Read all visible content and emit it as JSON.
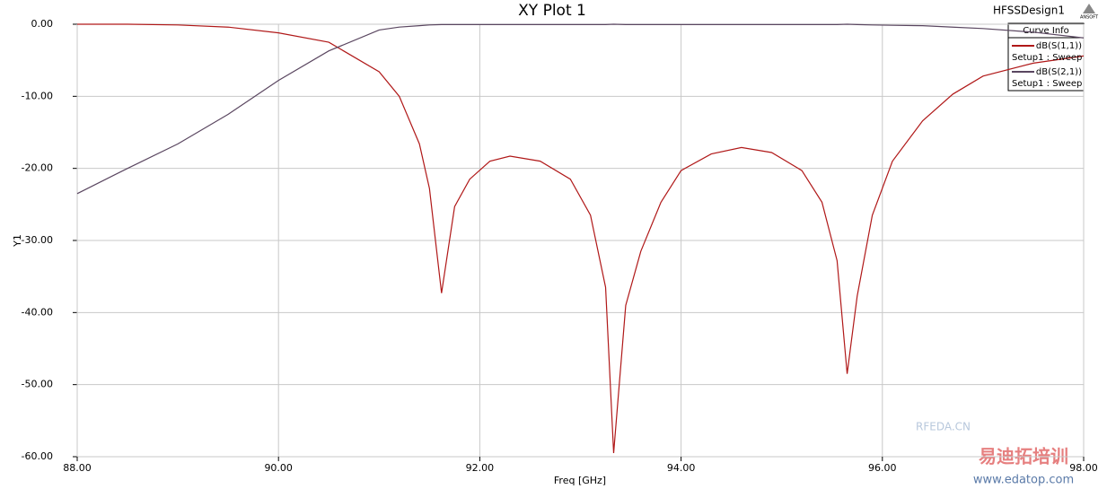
{
  "chart_data": {
    "type": "line",
    "title": "XY Plot 1",
    "design": "HFSSDesign1",
    "logo": "ANSOFT",
    "xlabel": "Freq [GHz]",
    "ylabel": "Y1",
    "legend_title": "Curve Info",
    "grid": true,
    "xlim": [
      88,
      98
    ],
    "ylim": [
      -60,
      0
    ],
    "xticks": [
      {
        "value": 88,
        "label": "88.00"
      },
      {
        "value": 90,
        "label": "90.00"
      },
      {
        "value": 92,
        "label": "92.00"
      },
      {
        "value": 94,
        "label": "94.00"
      },
      {
        "value": 96,
        "label": "96.00"
      },
      {
        "value": 98,
        "label": "98.00"
      }
    ],
    "yticks": [
      {
        "value": 0,
        "label": "0.00"
      },
      {
        "value": -10,
        "label": "-10.00"
      },
      {
        "value": -20,
        "label": "-20.00"
      },
      {
        "value": -30,
        "label": "-30.00"
      },
      {
        "value": -40,
        "label": "-40.00"
      },
      {
        "value": -50,
        "label": "-50.00"
      },
      {
        "value": -60,
        "label": "-60.00"
      }
    ],
    "x": [
      88,
      88.5,
      89,
      89.5,
      90,
      90.5,
      91,
      91.2,
      91.4,
      91.5,
      91.62,
      91.75,
      91.9,
      92.1,
      92.3,
      92.6,
      92.9,
      93.1,
      93.25,
      93.33,
      93.45,
      93.6,
      93.8,
      94,
      94.3,
      94.6,
      94.9,
      95.2,
      95.4,
      95.55,
      95.65,
      95.75,
      95.9,
      96.1,
      96.4,
      96.7,
      97,
      97.5,
      98
    ],
    "series": [
      {
        "name": "dB(S(1,1))",
        "sweep": "Setup1 : Sweep",
        "color": "#b01818",
        "values": [
          0,
          0,
          -0.1,
          -0.4,
          -1.2,
          -2.5,
          -6.6,
          -10,
          -16.6,
          -22.8,
          -37.3,
          -25.3,
          -21.5,
          -19,
          -18.3,
          -19,
          -21.5,
          -26.5,
          -36.5,
          -59.5,
          -39,
          -31.5,
          -24.7,
          -20.3,
          -18,
          -17.1,
          -17.8,
          -20.3,
          -24.7,
          -32.8,
          -48.5,
          -37.7,
          -26.5,
          -19,
          -13.4,
          -9.7,
          -7.2,
          -5.4,
          -4.4
        ]
      },
      {
        "name": "dB(S(2,1))",
        "sweep": "Setup1 : Sweep",
        "color": "#5a4660",
        "values": [
          -23.5,
          -20,
          -16.6,
          -12.5,
          -7.8,
          -3.7,
          -0.8,
          -0.4,
          -0.2,
          -0.1,
          -0.05,
          -0.05,
          -0.05,
          -0.05,
          -0.05,
          -0.05,
          -0.05,
          -0.05,
          -0.05,
          0,
          -0.05,
          -0.05,
          -0.05,
          -0.05,
          -0.05,
          -0.05,
          -0.05,
          -0.05,
          -0.05,
          -0.05,
          0,
          -0.05,
          -0.1,
          -0.15,
          -0.2,
          -0.4,
          -0.6,
          -1.1,
          -1.9
        ]
      }
    ],
    "watermarks": [
      "RFEDA.CN",
      "易迪拓培训",
      "www.edatop.com"
    ]
  }
}
